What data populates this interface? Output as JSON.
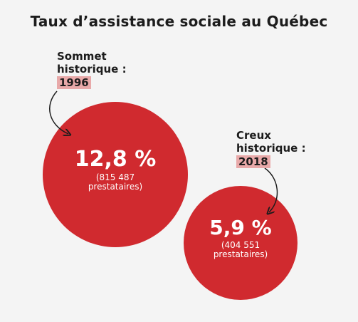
{
  "title": "Taux d’assistance sociale au Québec",
  "colors": {
    "circle": "#d02a2f",
    "year_highlight": "#e8a9a9",
    "text_dark": "#1c1c1c"
  },
  "chart_data": {
    "type": "bubble",
    "title": "Taux d’assistance sociale au Québec",
    "items": [
      {
        "label_lines": [
          "Sommet",
          "historique :"
        ],
        "year": "1996",
        "rate_label": "12,8 %",
        "value": 12.8,
        "recipients_lines": [
          "(815 487",
          "prestataires)"
        ]
      },
      {
        "label_lines": [
          "Creux",
          "historique :"
        ],
        "year": "2018",
        "rate_label": "5,9 %",
        "value": 5.9,
        "recipients_lines": [
          "(404 551",
          "prestataires)"
        ]
      }
    ]
  }
}
